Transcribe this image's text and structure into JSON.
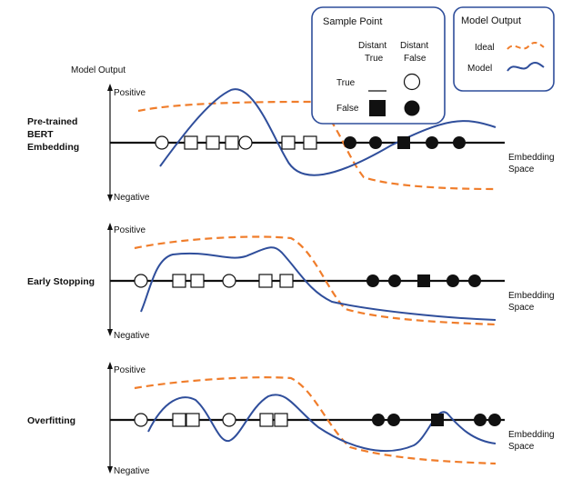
{
  "y_axis_title": "Model Output",
  "axis_positive": "Positive",
  "axis_negative": "Negative",
  "x_axis_label_line1": "Embedding",
  "x_axis_label_line2": "Space",
  "panels": [
    {
      "label_lines": [
        "Pre-trained",
        "BERT",
        "Embedding"
      ]
    },
    {
      "label_lines": [
        "Early Stopping"
      ]
    },
    {
      "label_lines": [
        "Overfitting"
      ]
    }
  ],
  "legend_sample": {
    "title": "Sample Point",
    "col1_line1": "Distant",
    "col1_line2": "True",
    "col2_line1": "Distant",
    "col2_line2": "False",
    "row_true": "True",
    "row_false": "False"
  },
  "legend_output": {
    "title": "Model Output",
    "ideal": "Ideal",
    "model": "Model",
    "colors": {
      "ideal": "#f07d2b",
      "model": "#2f4e9b"
    }
  }
}
